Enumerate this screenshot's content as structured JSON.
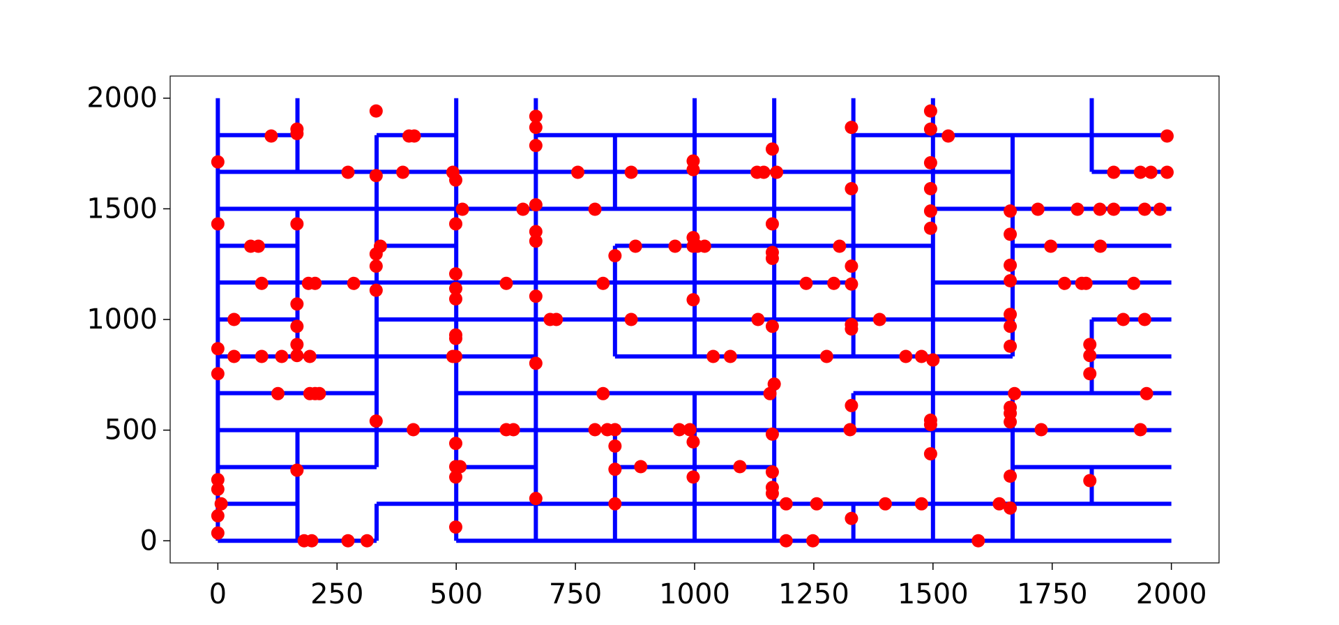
{
  "chart_data": {
    "type": "scatter",
    "xlim": [
      -100,
      2100
    ],
    "ylim": [
      -100,
      2100
    ],
    "xticks": [
      0,
      250,
      500,
      750,
      1000,
      1250,
      1500,
      1750,
      2000
    ],
    "yticks": [
      0,
      500,
      1000,
      1500,
      2000
    ],
    "grid": false,
    "lines": {
      "color": "#0000ff",
      "segments": [
        {
          "x": [
            0,
            167
          ],
          "y": [
            1833,
            1833
          ]
        },
        {
          "x": [
            333,
            500
          ],
          "y": [
            1833,
            1833
          ]
        },
        {
          "x": [
            667,
            1167
          ],
          "y": [
            1833,
            1833
          ]
        },
        {
          "x": [
            1333,
            2000
          ],
          "y": [
            1833,
            1833
          ]
        },
        {
          "x": [
            0,
            1667
          ],
          "y": [
            1667,
            1667
          ]
        },
        {
          "x": [
            1833,
            2000
          ],
          "y": [
            1667,
            1667
          ]
        },
        {
          "x": [
            0,
            1333
          ],
          "y": [
            1500,
            1500
          ]
        },
        {
          "x": [
            1500,
            2000
          ],
          "y": [
            1500,
            1500
          ]
        },
        {
          "x": [
            0,
            167
          ],
          "y": [
            1333,
            1333
          ]
        },
        {
          "x": [
            333,
            500
          ],
          "y": [
            1333,
            1333
          ]
        },
        {
          "x": [
            833,
            1500
          ],
          "y": [
            1333,
            1333
          ]
        },
        {
          "x": [
            1667,
            2000
          ],
          "y": [
            1333,
            1333
          ]
        },
        {
          "x": [
            0,
            1333
          ],
          "y": [
            1167,
            1167
          ]
        },
        {
          "x": [
            1500,
            2000
          ],
          "y": [
            1167,
            1167
          ]
        },
        {
          "x": [
            0,
            167
          ],
          "y": [
            1000,
            1000
          ]
        },
        {
          "x": [
            333,
            1667
          ],
          "y": [
            1000,
            1000
          ]
        },
        {
          "x": [
            1833,
            2000
          ],
          "y": [
            1000,
            1000
          ]
        },
        {
          "x": [
            0,
            667
          ],
          "y": [
            833,
            833
          ]
        },
        {
          "x": [
            833,
            1667
          ],
          "y": [
            833,
            833
          ]
        },
        {
          "x": [
            1833,
            2000
          ],
          "y": [
            833,
            833
          ]
        },
        {
          "x": [
            0,
            333
          ],
          "y": [
            667,
            667
          ]
        },
        {
          "x": [
            500,
            1167
          ],
          "y": [
            667,
            667
          ]
        },
        {
          "x": [
            1333,
            2000
          ],
          "y": [
            667,
            667
          ]
        },
        {
          "x": [
            0,
            2000
          ],
          "y": [
            500,
            500
          ]
        },
        {
          "x": [
            0,
            333
          ],
          "y": [
            333,
            333
          ]
        },
        {
          "x": [
            500,
            667
          ],
          "y": [
            333,
            333
          ]
        },
        {
          "x": [
            833,
            1167
          ],
          "y": [
            333,
            333
          ]
        },
        {
          "x": [
            1667,
            2000
          ],
          "y": [
            333,
            333
          ]
        },
        {
          "x": [
            0,
            167
          ],
          "y": [
            167,
            167
          ]
        },
        {
          "x": [
            333,
            2000
          ],
          "y": [
            167,
            167
          ]
        },
        {
          "x": [
            0,
            333
          ],
          "y": [
            0,
            0
          ]
        },
        {
          "x": [
            500,
            2000
          ],
          "y": [
            0,
            0
          ]
        },
        {
          "x": [
            0,
            0
          ],
          "y": [
            0,
            2000
          ]
        },
        {
          "x": [
            167,
            167
          ],
          "y": [
            1667,
            2000
          ]
        },
        {
          "x": [
            167,
            167
          ],
          "y": [
            833,
            1500
          ]
        },
        {
          "x": [
            167,
            167
          ],
          "y": [
            0,
            500
          ]
        },
        {
          "x": [
            333,
            333
          ],
          "y": [
            333,
            1833
          ]
        },
        {
          "x": [
            333,
            333
          ],
          "y": [
            0,
            167
          ]
        },
        {
          "x": [
            500,
            500
          ],
          "y": [
            0,
            2000
          ]
        },
        {
          "x": [
            667,
            667
          ],
          "y": [
            0,
            2000
          ]
        },
        {
          "x": [
            833,
            833
          ],
          "y": [
            0,
            500
          ]
        },
        {
          "x": [
            833,
            833
          ],
          "y": [
            833,
            1333
          ]
        },
        {
          "x": [
            833,
            833
          ],
          "y": [
            1500,
            1833
          ]
        },
        {
          "x": [
            1000,
            1000
          ],
          "y": [
            833,
            2000
          ]
        },
        {
          "x": [
            1000,
            1000
          ],
          "y": [
            0,
            667
          ]
        },
        {
          "x": [
            1167,
            1167
          ],
          "y": [
            0,
            2000
          ]
        },
        {
          "x": [
            1333,
            1333
          ],
          "y": [
            833,
            2000
          ]
        },
        {
          "x": [
            1333,
            1333
          ],
          "y": [
            500,
            667
          ]
        },
        {
          "x": [
            1333,
            1333
          ],
          "y": [
            0,
            167
          ]
        },
        {
          "x": [
            1500,
            1500
          ],
          "y": [
            0,
            2000
          ]
        },
        {
          "x": [
            1667,
            1667
          ],
          "y": [
            833,
            1833
          ]
        },
        {
          "x": [
            1667,
            1667
          ],
          "y": [
            0,
            667
          ]
        },
        {
          "x": [
            1833,
            1833
          ],
          "y": [
            1667,
            2000
          ]
        },
        {
          "x": [
            1833,
            1833
          ],
          "y": [
            667,
            1000
          ]
        },
        {
          "x": [
            1833,
            1833
          ],
          "y": [
            167,
            333
          ]
        }
      ]
    },
    "points": {
      "color": "#ff0000",
      "x": [
        0,
        0,
        0,
        0,
        0,
        0,
        7,
        0,
        0,
        112,
        166,
        166,
        166,
        166,
        166,
        166,
        166,
        166,
        181,
        197,
        273,
        313,
        34,
        34,
        69,
        85,
        92,
        92,
        134,
        126,
        190,
        204,
        193,
        193,
        204,
        213,
        273,
        285,
        332,
        332,
        332,
        341,
        332,
        332,
        332,
        388,
        410,
        401,
        412,
        493,
        499,
        499,
        513,
        499,
        499,
        499,
        499,
        499,
        493,
        499,
        499,
        499,
        508,
        499,
        499,
        605,
        605,
        620,
        640,
        667,
        667,
        667,
        667,
        667,
        667,
        667,
        667,
        667,
        697,
        710,
        755,
        791,
        791,
        808,
        808,
        817,
        833,
        833,
        833,
        833,
        833,
        867,
        867,
        876,
        887,
        959,
        968,
        990,
        997,
        997,
        997,
        997,
        1006,
        1021,
        997,
        997,
        997,
        1039,
        1075,
        1095,
        1131,
        1145,
        1133,
        1158,
        1163,
        1172,
        1163,
        1163,
        1163,
        1163,
        1167,
        1163,
        1163,
        1163,
        1163,
        1192,
        1192,
        1248,
        1256,
        1234,
        1277,
        1292,
        1304,
        1329,
        1329,
        1329,
        1329,
        1329,
        1329,
        1326,
        1329,
        1329,
        1388,
        1400,
        1443,
        1476,
        1476,
        1495,
        1495,
        1495,
        1495,
        1495,
        1495,
        1500,
        1495,
        1495,
        1495,
        1532,
        1595,
        1639,
        1662,
        1662,
        1662,
        1662,
        1662,
        1662,
        1662,
        1671,
        1662,
        1662,
        1662,
        1662,
        1662,
        1720,
        1727,
        1747,
        1776,
        1803,
        1812,
        1821,
        1850,
        1829,
        1829,
        1829,
        1829,
        1851,
        1879,
        1879,
        1899,
        1921,
        1935,
        1935,
        1957,
        1944,
        1944,
        1948,
        1976,
        1991,
        1991
      ],
      "y": [
        1712,
        1432,
        868,
        755,
        276,
        233,
        167,
        113,
        35,
        1829,
        1860,
        1840,
        1432,
        1070,
        969,
        887,
        837,
        319,
        0,
        0,
        0,
        0,
        1000,
        833,
        1331,
        1331,
        1163,
        833,
        833,
        665,
        1163,
        1163,
        833,
        665,
        665,
        665,
        1665,
        1163,
        1942,
        1650,
        1296,
        1331,
        1241,
        1132,
        541,
        1665,
        502,
        1829,
        1829,
        1665,
        1630,
        1432,
        1498,
        1206,
        1140,
        1093,
        930,
        914,
        833,
        833,
        440,
        335,
        335,
        288,
        62,
        1163,
        502,
        502,
        1498,
        1918,
        1868,
        1786,
        1518,
        1397,
        1354,
        1105,
        802,
        191,
        1000,
        1000,
        1665,
        1498,
        502,
        1163,
        665,
        502,
        1288,
        502,
        428,
        323,
        167,
        1665,
        1000,
        1331,
        335,
        1331,
        502,
        502,
        1716,
        1677,
        1370,
        1331,
        1331,
        1331,
        1089,
        447,
        288,
        833,
        833,
        335,
        1665,
        1665,
        1000,
        665,
        1770,
        1665,
        1432,
        1303,
        1276,
        969,
        708,
        482,
        311,
        241,
        214,
        167,
        0,
        0,
        167,
        1163,
        833,
        1163,
        1331,
        1868,
        1591,
        1241,
        1160,
        977,
        957,
        502,
        611,
        101,
        1000,
        167,
        833,
        833,
        167,
        1942,
        1860,
        1708,
        1591,
        1490,
        1412,
        817,
        545,
        525,
        393,
        1829,
        0,
        167,
        1490,
        1385,
        1245,
        1175,
        1023,
        969,
        879,
        665,
        603,
        576,
        537,
        292,
        148,
        1498,
        502,
        1331,
        1163,
        1498,
        1163,
        1163,
        1498,
        887,
        837,
        755,
        272,
        1331,
        1665,
        1498,
        1000,
        1163,
        502,
        1665,
        1665,
        1498,
        1000,
        665,
        1498,
        1829,
        1665
      ]
    }
  }
}
